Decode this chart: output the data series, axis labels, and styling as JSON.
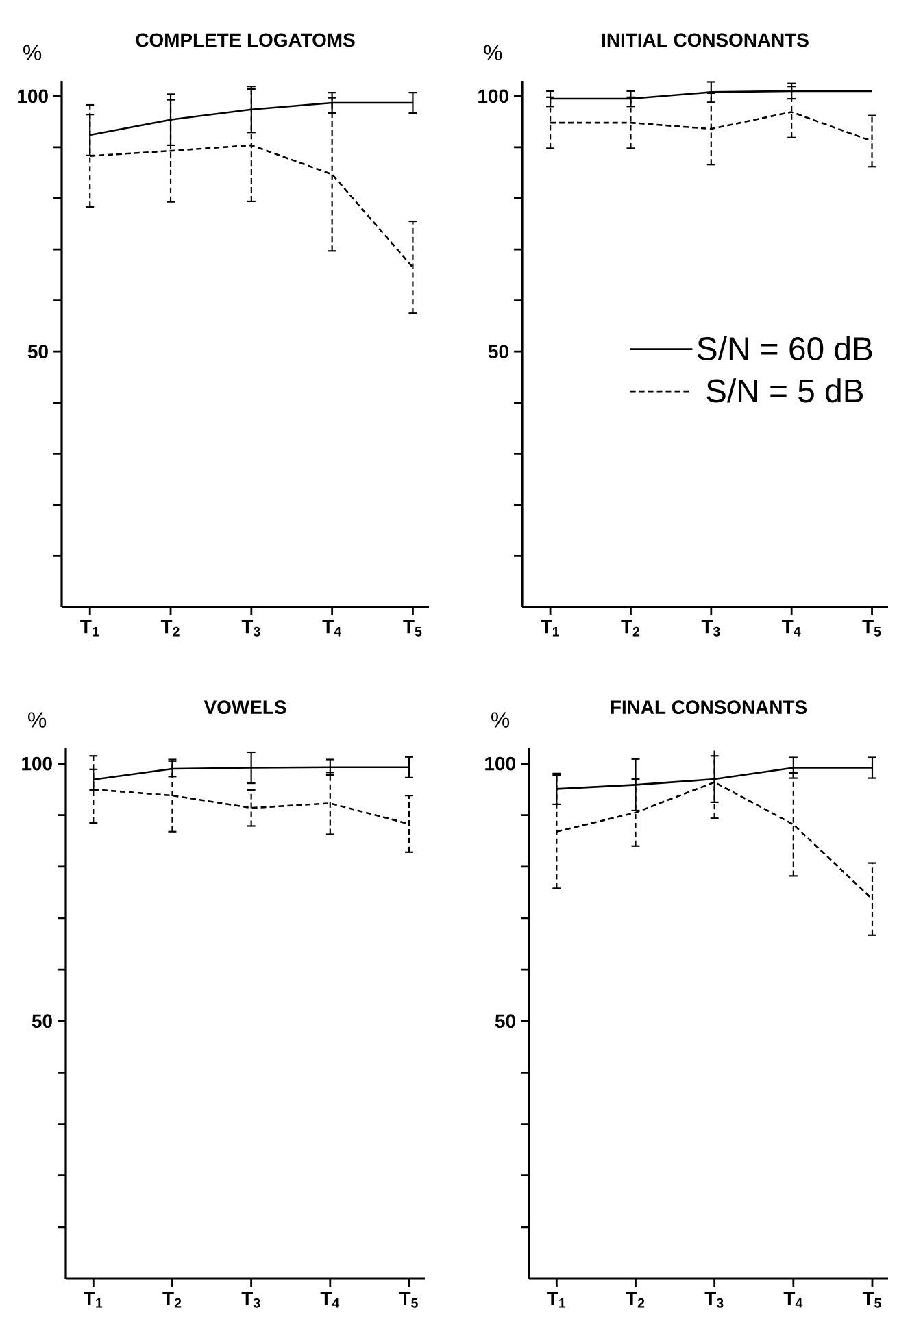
{
  "chart_data": [
    {
      "type": "line",
      "title": "COMPLETE LOGATOMS",
      "ylabel": "%",
      "categories": [
        "T$_{1}$",
        "T$_{2}$",
        "T$_{3}$",
        "T$_{4}$",
        "T$_{5}$"
      ],
      "ylim": [
        0,
        103
      ],
      "yticks": [
        {
          "value": 10,
          "label": null
        },
        {
          "value": 20,
          "label": null
        },
        {
          "value": 30,
          "label": null
        },
        {
          "value": 40,
          "label": null
        },
        50,
        {
          "value": 60,
          "label": null
        },
        {
          "value": 70,
          "label": null
        },
        {
          "value": 80,
          "label": null
        },
        {
          "value": 90,
          "label": null
        },
        100
      ],
      "series": [
        {
          "color": "#000000",
          "line_style": "solid",
          "values": [
            92.4,
            95.4,
            97.4,
            98.7,
            98.7
          ],
          "errors": [
            4,
            5,
            4.5,
            2,
            2
          ]
        },
        {
          "color": "#000000",
          "line_style": "dashed",
          "values": [
            88.3,
            89.3,
            90.4,
            84.7,
            66.5
          ],
          "errors": [
            10,
            10,
            11,
            15,
            9
          ]
        }
      ]
    },
    {
      "type": "line",
      "title": "INITIAL CONSONANTS",
      "ylabel": "%",
      "categories": [
        "T$_{1}$",
        "T$_{2}$",
        "T$_{3}$",
        "T$_{4}$",
        "T$_{5}$"
      ],
      "ylim": [
        0,
        103
      ],
      "yticks": [
        {
          "value": 10,
          "label": null
        },
        {
          "value": 20,
          "label": null
        },
        {
          "value": 30,
          "label": null
        },
        {
          "value": 40,
          "label": null
        },
        50,
        {
          "value": 60,
          "label": null
        },
        {
          "value": 70,
          "label": null
        },
        {
          "value": 80,
          "label": null
        },
        {
          "value": 90,
          "label": null
        },
        100
      ],
      "legend": "right",
      "series": [
        {
          "name": "S/N = 60 dB",
          "color": "#000000",
          "line_style": "solid",
          "values": [
            99.5,
            99.5,
            100.8,
            101,
            101
          ],
          "errors": [
            1.5,
            1.5,
            2,
            1.5,
            null
          ]
        },
        {
          "name": "S/N = 5 dB",
          "color": "#000000",
          "line_style": "dashed",
          "values": [
            94.8,
            94.8,
            93.6,
            96.9,
            91.2
          ],
          "errors": [
            5,
            5,
            7,
            5,
            5
          ]
        }
      ]
    },
    {
      "type": "line",
      "title": "VOWELS",
      "ylabel": "%",
      "categories": [
        "T$_{1}$",
        "T$_{2}$",
        "T$_{3}$",
        "T$_{4}$",
        "T$_{5}$"
      ],
      "ylim": [
        0,
        103
      ],
      "yticks": [
        {
          "value": 10,
          "label": null
        },
        {
          "value": 20,
          "label": null
        },
        {
          "value": 30,
          "label": null
        },
        {
          "value": 40,
          "label": null
        },
        50,
        {
          "value": 60,
          "label": null
        },
        {
          "value": 70,
          "label": null
        },
        {
          "value": 80,
          "label": null
        },
        {
          "value": 90,
          "label": null
        },
        100
      ],
      "series": [
        {
          "color": "#000000",
          "line_style": "solid",
          "values": [
            96.9,
            99,
            99.2,
            99.3,
            99.3
          ],
          "errors": [
            2,
            1.5,
            3,
            1.5,
            2
          ]
        },
        {
          "color": "#000000",
          "line_style": "dashed",
          "values": [
            95,
            93.8,
            91.4,
            92.3,
            88.3
          ],
          "errors": [
            6.5,
            7,
            3.5,
            6,
            5.5
          ]
        }
      ]
    },
    {
      "type": "line",
      "title": "FINAL CONSONANTS",
      "ylabel": "%",
      "categories": [
        "T$_{1}$",
        "T$_{2}$",
        "T$_{3}$",
        "T$_{4}$",
        "T$_{5}$"
      ],
      "ylim": [
        0,
        103
      ],
      "yticks": [
        {
          "value": 10,
          "label": null
        },
        {
          "value": 20,
          "label": null
        },
        {
          "value": 30,
          "label": null
        },
        {
          "value": 40,
          "label": null
        },
        50,
        {
          "value": 60,
          "label": null
        },
        {
          "value": 70,
          "label": null
        },
        {
          "value": 80,
          "label": null
        },
        {
          "value": 90,
          "label": null
        },
        100
      ],
      "series": [
        {
          "color": "#000000",
          "line_style": "solid",
          "values": [
            95.1,
            95.9,
            97,
            99.2,
            99.2
          ],
          "errors": [
            3,
            5,
            4.5,
            2,
            2
          ]
        },
        {
          "color": "#000000",
          "line_style": "dashed",
          "values": [
            86.8,
            90.5,
            96.4,
            88.2,
            73.7
          ],
          "errors": [
            11,
            6.5,
            7,
            10,
            7
          ]
        }
      ]
    }
  ]
}
